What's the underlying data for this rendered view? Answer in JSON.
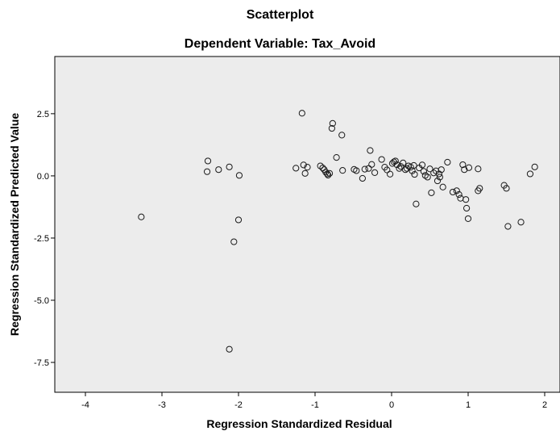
{
  "chart_data": {
    "type": "scatter",
    "title": "Scatterplot",
    "subtitle": "Dependent Variable: Tax_Avoid",
    "xlabel": "Regression Standardized Residual",
    "ylabel": "Regression Standardized Predicted Value",
    "xlim": [
      -4.4,
      2.2
    ],
    "ylim": [
      -8.7,
      4.8
    ],
    "x_ticks": [
      -4,
      -3,
      -2,
      -1,
      0,
      1,
      2
    ],
    "x_tick_labels": [
      "-4",
      "-3",
      "-2",
      "-1",
      "0",
      "1",
      "2"
    ],
    "y_ticks": [
      2.5,
      0.0,
      -2.5,
      -5.0,
      -7.5
    ],
    "y_tick_labels": [
      "2.5",
      "0.0",
      "-2.5",
      "-5.0",
      "-7.5"
    ],
    "grid": false,
    "plot_background": "#ececec",
    "marker": "open-circle",
    "points": [
      [
        -3.27,
        -1.65
      ],
      [
        -2.4,
        0.6
      ],
      [
        -2.41,
        0.17
      ],
      [
        -2.26,
        0.25
      ],
      [
        -2.12,
        0.36
      ],
      [
        -1.99,
        0.02
      ],
      [
        -2.0,
        -1.77
      ],
      [
        -2.06,
        -2.65
      ],
      [
        -2.12,
        -6.97
      ],
      [
        -1.17,
        2.52
      ],
      [
        -1.15,
        0.44
      ],
      [
        -1.13,
        0.1
      ],
      [
        -1.1,
        0.35
      ],
      [
        -1.25,
        0.31
      ],
      [
        -0.77,
        2.11
      ],
      [
        -0.78,
        1.91
      ],
      [
        -0.72,
        0.74
      ],
      [
        -0.65,
        1.64
      ],
      [
        -0.64,
        0.22
      ],
      [
        -0.93,
        0.4
      ],
      [
        -0.9,
        0.32
      ],
      [
        -0.88,
        0.25
      ],
      [
        -0.86,
        0.15
      ],
      [
        -0.84,
        0.08
      ],
      [
        -0.83,
        0.03
      ],
      [
        -0.81,
        0.1
      ],
      [
        -0.49,
        0.26
      ],
      [
        -0.46,
        0.21
      ],
      [
        -0.38,
        -0.1
      ],
      [
        -0.28,
        1.02
      ],
      [
        -0.26,
        0.46
      ],
      [
        -0.22,
        0.13
      ],
      [
        -0.13,
        0.66
      ],
      [
        -0.09,
        0.35
      ],
      [
        -0.06,
        0.24
      ],
      [
        -0.02,
        0.07
      ],
      [
        -0.35,
        0.27
      ],
      [
        -0.3,
        0.3
      ],
      [
        0.01,
        0.5
      ],
      [
        0.03,
        0.56
      ],
      [
        0.05,
        0.6
      ],
      [
        0.07,
        0.45
      ],
      [
        0.1,
        0.3
      ],
      [
        0.12,
        0.38
      ],
      [
        0.15,
        0.52
      ],
      [
        0.18,
        0.25
      ],
      [
        0.2,
        0.3
      ],
      [
        0.22,
        0.4
      ],
      [
        0.25,
        0.35
      ],
      [
        0.27,
        0.2
      ],
      [
        0.29,
        0.42
      ],
      [
        0.3,
        0.06
      ],
      [
        0.32,
        -1.13
      ],
      [
        0.36,
        0.32
      ],
      [
        0.4,
        0.44
      ],
      [
        0.42,
        0.18
      ],
      [
        0.44,
        0.02
      ],
      [
        0.47,
        -0.05
      ],
      [
        0.5,
        0.28
      ],
      [
        0.52,
        -0.68
      ],
      [
        0.55,
        0.12
      ],
      [
        0.58,
        0.2
      ],
      [
        0.6,
        -0.2
      ],
      [
        0.62,
        0.08
      ],
      [
        0.63,
        -0.05
      ],
      [
        0.65,
        0.25
      ],
      [
        0.67,
        -0.45
      ],
      [
        0.73,
        0.55
      ],
      [
        0.8,
        -0.65
      ],
      [
        0.85,
        -0.6
      ],
      [
        0.88,
        -0.75
      ],
      [
        0.9,
        -0.9
      ],
      [
        0.93,
        0.45
      ],
      [
        0.95,
        0.25
      ],
      [
        0.97,
        -0.95
      ],
      [
        0.98,
        -1.3
      ],
      [
        1.0,
        -1.72
      ],
      [
        1.01,
        0.33
      ],
      [
        1.13,
        0.28
      ],
      [
        1.15,
        -0.5
      ],
      [
        1.13,
        -0.6
      ],
      [
        1.47,
        -0.38
      ],
      [
        1.5,
        -0.5
      ],
      [
        1.52,
        -2.03
      ],
      [
        1.69,
        -1.86
      ],
      [
        1.81,
        0.08
      ],
      [
        1.87,
        0.36
      ]
    ]
  }
}
